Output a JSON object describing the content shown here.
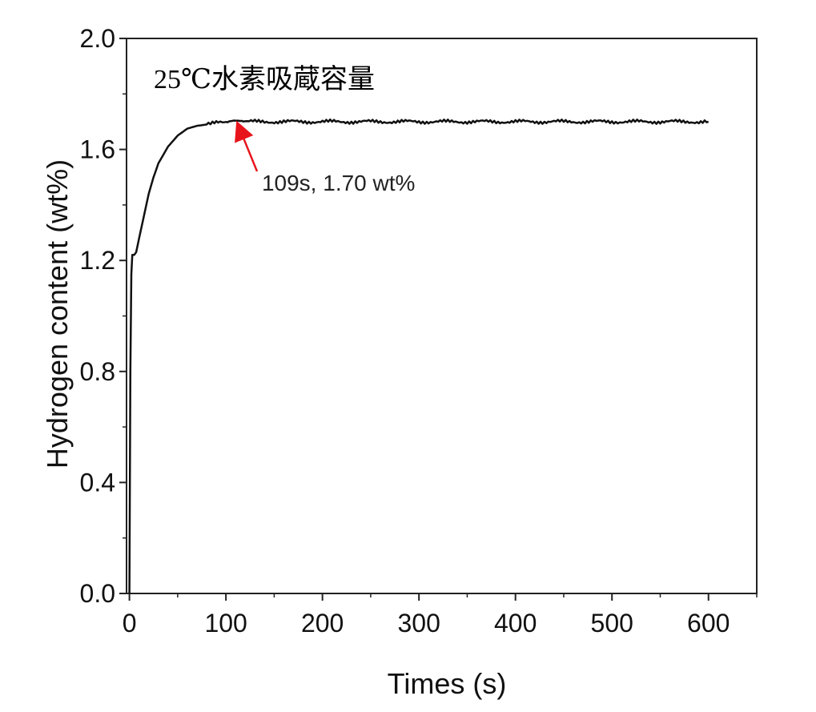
{
  "chart_data": {
    "type": "line",
    "title": "25℃水素吸蔵容量",
    "xlabel": "Times (s)",
    "ylabel": "Hydrogen content (wt%)",
    "xlim": [
      -3,
      650
    ],
    "ylim": [
      0.0,
      2.0
    ],
    "x_ticks": [
      0,
      100,
      200,
      300,
      400,
      500,
      600
    ],
    "x_tick_labels": [
      "0",
      "100",
      "200",
      "300",
      "400",
      "500",
      "600"
    ],
    "y_ticks": [
      0.0,
      0.4,
      0.8,
      1.2,
      1.6,
      2.0
    ],
    "y_tick_labels": [
      "0.0",
      "0.4",
      "0.8",
      "1.2",
      "1.6",
      "2.0"
    ],
    "grid": false,
    "series": [
      {
        "color": "#111111",
        "x": [
          0,
          1,
          2,
          3,
          5,
          7,
          10,
          15,
          20,
          25,
          30,
          40,
          50,
          60,
          70,
          80,
          90,
          100,
          109,
          120,
          150,
          200,
          250,
          300,
          350,
          400,
          450,
          500,
          550,
          600
        ],
        "y": [
          0.0,
          0.8,
          1.15,
          1.22,
          1.22,
          1.23,
          1.28,
          1.36,
          1.44,
          1.5,
          1.55,
          1.61,
          1.65,
          1.675,
          1.685,
          1.69,
          1.695,
          1.698,
          1.7,
          1.7,
          1.7,
          1.7,
          1.7,
          1.7,
          1.7,
          1.7,
          1.7,
          1.7,
          1.7,
          1.7
        ]
      }
    ],
    "annotation": {
      "text": "109s, 1.70 wt%",
      "x": 109,
      "y": 1.7,
      "color": "#e8141c"
    }
  }
}
